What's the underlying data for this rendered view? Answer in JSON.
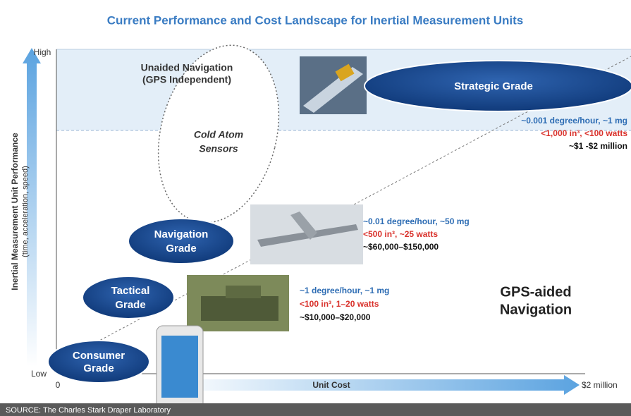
{
  "header": {
    "title": "Current Performance and Cost Landscape for Inertial Measurement Units"
  },
  "axes": {
    "y_title": [
      "Inertial Measurement Unit Performance",
      "(time, acceleration, speed)"
    ],
    "y_high": "High",
    "y_low": "Low",
    "x_start": "0",
    "x_title": "Unit Cost",
    "x_end": "$2 million"
  },
  "regions": {
    "unaided": [
      "Unaided Navigation",
      "(GPS Independent)"
    ],
    "cold_atom": [
      "Cold Atom",
      "Sensors"
    ],
    "gps_aided": [
      "GPS-aided",
      "Navigation"
    ]
  },
  "grades": [
    {
      "label": [
        "Consumer",
        "Grade"
      ]
    },
    {
      "label": [
        "Tactical",
        "Grade"
      ],
      "specs": [
        "~1 degree/hour, ~1 mg",
        "<100 in³, 1–20 watts",
        "~$10,000–$20,000"
      ]
    },
    {
      "label": [
        "Navigation",
        "Grade"
      ],
      "specs": [
        "~0.01 degree/hour, ~50 mg",
        "<500 in³, ~25 watts",
        "~$60,000–$150,000"
      ]
    },
    {
      "label": [
        "Strategic Grade"
      ],
      "specs": [
        "~0.001 degree/hour, ~1 mg",
        "<1,000 in³, <100 watts",
        "~$1 -$2 million"
      ]
    }
  ],
  "footer": {
    "source": "SOURCE: The Charles Stark Draper Laboratory"
  }
}
